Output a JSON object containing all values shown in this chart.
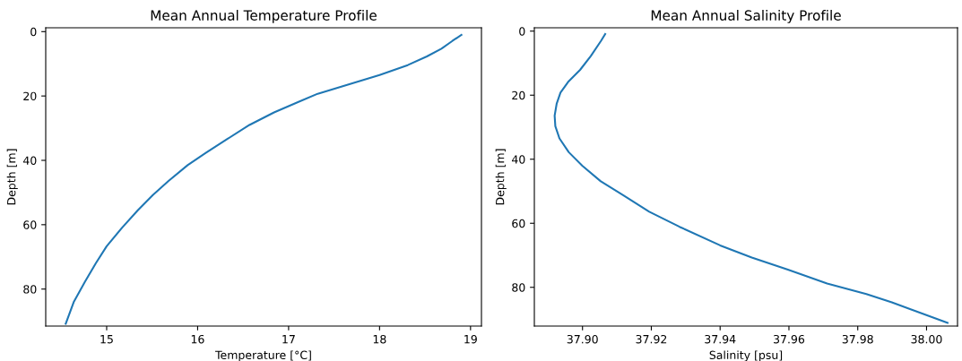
{
  "chart_data": [
    {
      "type": "line",
      "title": "Mean Annual Temperature Profile",
      "xlabel": "Temperature [°C]",
      "ylabel": "Depth [m]",
      "xlim": [
        14.33,
        19.12
      ],
      "xticks": [
        15,
        16,
        17,
        18,
        19
      ],
      "ylim": [
        91.5,
        -1.2
      ],
      "yticks": [
        0,
        20,
        40,
        60,
        80
      ],
      "grid": false,
      "legend": false,
      "series": [
        {
          "color": "#1f77b4",
          "x": [
            18.9,
            18.8,
            18.68,
            18.52,
            18.31,
            18.0,
            17.66,
            17.32,
            17.12,
            16.84,
            16.57,
            16.33,
            16.09,
            15.89,
            15.68,
            15.51,
            15.34,
            15.17,
            15.0,
            14.88,
            14.76,
            14.64,
            14.55
          ],
          "values": [
            1.0,
            2.9,
            5.3,
            7.7,
            10.4,
            13.5,
            16.4,
            19.3,
            21.7,
            25.1,
            29.0,
            33.3,
            37.7,
            41.5,
            46.4,
            50.7,
            55.6,
            60.9,
            66.7,
            72.0,
            77.8,
            83.9,
            90.8
          ]
        }
      ]
    },
    {
      "type": "line",
      "title": "Mean Annual Salinity Profile",
      "xlabel": "Salinity [psu]",
      "ylabel": "Depth [m]",
      "xlim": [
        37.886,
        38.009
      ],
      "xticks": [
        {
          "value": 37.9,
          "label": "37.90"
        },
        {
          "value": 37.92,
          "label": "37.92"
        },
        {
          "value": 37.94,
          "label": "37.94"
        },
        {
          "value": 37.96,
          "label": "37.96"
        },
        {
          "value": 37.98,
          "label": "37.98"
        },
        {
          "value": 38.0,
          "label": "38.00"
        }
      ],
      "ylim": [
        92.1,
        -1.05
      ],
      "yticks": [
        0,
        20,
        40,
        60,
        80
      ],
      "grid": false,
      "legend": false,
      "series": [
        {
          "color": "#1f77b4",
          "x": [
            37.9066,
            37.9054,
            37.9024,
            37.8993,
            37.8958,
            37.8936,
            37.8925,
            37.8919,
            37.8921,
            37.8933,
            37.896,
            37.9,
            37.9053,
            37.9116,
            37.9194,
            37.9282,
            37.94,
            37.9492,
            37.9597,
            37.9711,
            37.9825,
            37.9899,
            38.0061
          ],
          "values": [
            0.9,
            3.0,
            7.8,
            12.1,
            15.9,
            19.2,
            22.6,
            26.4,
            29.7,
            33.5,
            37.8,
            42.1,
            46.9,
            51.1,
            56.4,
            61.1,
            66.9,
            70.7,
            74.5,
            78.8,
            82.1,
            84.7,
            91.1
          ]
        }
      ]
    }
  ]
}
